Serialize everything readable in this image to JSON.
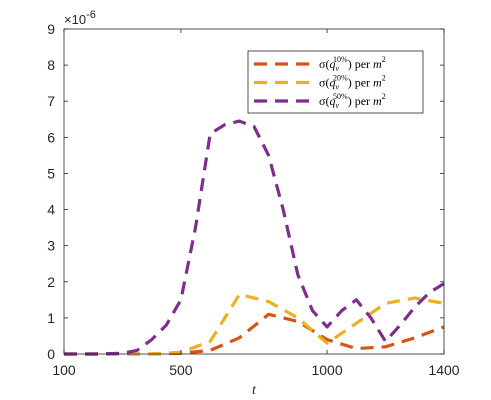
{
  "chart_data": {
    "type": "line",
    "xlabel": "t",
    "ylabel": "",
    "y_multiplier": "×10-6",
    "y_exponent_base": "×10",
    "y_exponent_power": "-6",
    "xlim": [
      100,
      1400
    ],
    "ylim": [
      0,
      9
    ],
    "x_ticks": [
      100,
      500,
      1000,
      1400
    ],
    "y_ticks": [
      0,
      1,
      2,
      3,
      4,
      5,
      6,
      7,
      8,
      9
    ],
    "grid": false,
    "legend_position": "top-right",
    "series": [
      {
        "name": "σ(qᵥ^10%) per m²",
        "legend": {
          "prefix": "σ(",
          "q": "q",
          "sub": "v",
          "sup": "10%",
          "suffix": ") per ",
          "unit": "m",
          "unit_sup": "2"
        },
        "color": "#D95319",
        "x": [
          100,
          200,
          300,
          400,
          500,
          600,
          700,
          800,
          900,
          1000,
          1100,
          1200,
          1300,
          1400
        ],
        "y": [
          0,
          0,
          0,
          0,
          0.02,
          0.1,
          0.45,
          1.1,
          0.9,
          0.4,
          0.15,
          0.2,
          0.45,
          0.75
        ]
      },
      {
        "name": "σ(qᵥ^20%) per m²",
        "legend": {
          "prefix": "σ(",
          "q": "q",
          "sub": "v",
          "sup": "20%",
          "suffix": ") per ",
          "unit": "m",
          "unit_sup": "2"
        },
        "color": "#EDB120",
        "x": [
          100,
          200,
          300,
          400,
          500,
          600,
          700,
          800,
          900,
          1000,
          1100,
          1200,
          1300,
          1400
        ],
        "y": [
          0,
          0,
          0,
          0,
          0.05,
          0.35,
          1.65,
          1.45,
          1.0,
          0.3,
          0.85,
          1.4,
          1.55,
          1.4
        ]
      },
      {
        "name": "σ(qᵥ^50%) per m²",
        "legend": {
          "prefix": "σ(",
          "q": "q",
          "sub": "v",
          "sup": "50%",
          "suffix": ") per ",
          "unit": "m",
          "unit_sup": "2"
        },
        "color": "#7E2F8E",
        "x": [
          100,
          200,
          300,
          350,
          400,
          450,
          500,
          550,
          600,
          650,
          700,
          750,
          800,
          850,
          900,
          950,
          1000,
          1050,
          1100,
          1150,
          1200,
          1250,
          1300,
          1350,
          1400
        ],
        "y": [
          0,
          0,
          0.02,
          0.1,
          0.4,
          0.8,
          1.5,
          3.5,
          6.1,
          6.35,
          6.45,
          6.3,
          5.5,
          4.0,
          2.2,
          1.2,
          0.75,
          1.2,
          1.5,
          1.0,
          0.35,
          0.8,
          1.3,
          1.7,
          1.95
        ]
      }
    ]
  }
}
